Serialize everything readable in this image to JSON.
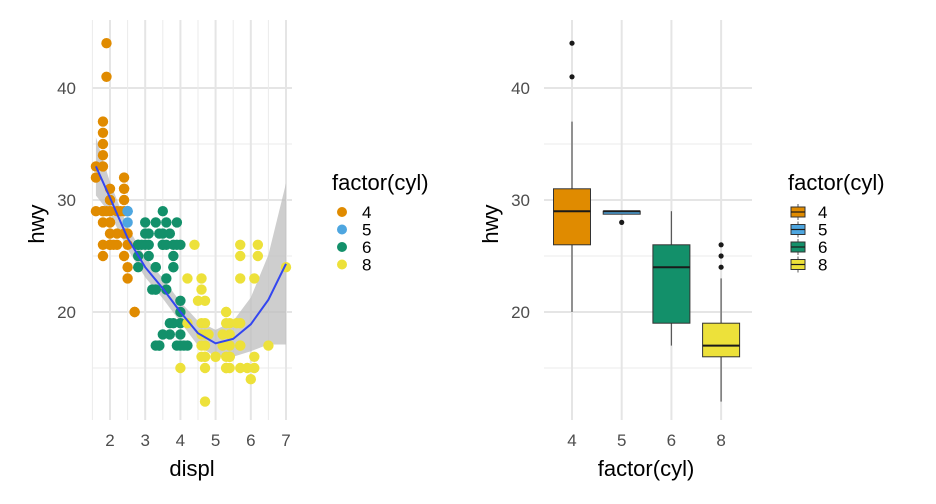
{
  "chart_data": [
    {
      "type": "scatter",
      "title": "",
      "xlabel": "displ",
      "ylabel": "hwy",
      "xlim": [
        1.6,
        7.0
      ],
      "ylim": [
        12,
        44
      ],
      "x_ticks": [
        "2",
        "3",
        "4",
        "5",
        "6",
        "7"
      ],
      "y_ticks": [
        "20",
        "30",
        "40"
      ],
      "grid": true,
      "legend": {
        "title": "factor(cyl)",
        "position": "right",
        "entries": [
          "4",
          "5",
          "6",
          "8"
        ]
      },
      "colors": {
        "4": "#E08B00",
        "5": "#4EA6E0",
        "6": "#13906A",
        "8": "#EDE13A"
      },
      "smooth": {
        "color": "#3346F0",
        "band_color": "#BEBEBE",
        "x": [
          1.6,
          2.0,
          2.5,
          3.0,
          3.5,
          4.0,
          4.5,
          5.0,
          5.5,
          6.0,
          6.5,
          7.0
        ],
        "y": [
          33,
          30.2,
          26.6,
          24.0,
          22.1,
          20.0,
          18.1,
          17.2,
          17.6,
          18.9,
          21.1,
          24.3
        ],
        "se": [
          1.3,
          0.7,
          0.5,
          0.45,
          0.45,
          0.45,
          0.55,
          0.6,
          0.8,
          1.2,
          2.0,
          3.6
        ]
      },
      "series": [
        {
          "name": "4",
          "points": [
            [
              1.8,
              29
            ],
            [
              1.8,
              29
            ],
            [
              2.0,
              31
            ],
            [
              2.0,
              30
            ],
            [
              1.8,
              26
            ],
            [
              1.8,
              25
            ],
            [
              2.0,
              28
            ],
            [
              2.0,
              29
            ],
            [
              2.0,
              26
            ],
            [
              2.4,
              27
            ],
            [
              2.4,
              30
            ],
            [
              2.5,
              26
            ],
            [
              2.5,
              23
            ],
            [
              2.2,
              26
            ],
            [
              2.2,
              29
            ],
            [
              2.4,
              31
            ],
            [
              2.4,
              31
            ],
            [
              1.8,
              33
            ],
            [
              1.6,
              33
            ],
            [
              1.6,
              32
            ],
            [
              1.6,
              29
            ],
            [
              1.9,
              44
            ],
            [
              1.9,
              41
            ],
            [
              1.8,
              37
            ],
            [
              1.8,
              36
            ],
            [
              1.8,
              35
            ],
            [
              1.8,
              34
            ],
            [
              2.0,
              26
            ],
            [
              2.4,
              29
            ],
            [
              2.5,
              24
            ],
            [
              2.7,
              20
            ],
            [
              2.7,
              20
            ],
            [
              2.5,
              27
            ],
            [
              2.0,
              28
            ],
            [
              2.2,
              27
            ],
            [
              2.4,
              25
            ],
            [
              2.4,
              32
            ],
            [
              1.9,
              29
            ],
            [
              2.0,
              27
            ],
            [
              2.1,
              26
            ],
            [
              2.3,
              29
            ],
            [
              2.0,
              30
            ],
            [
              1.8,
              28
            ]
          ]
        },
        {
          "name": "5",
          "points": [
            [
              2.5,
              29
            ],
            [
              2.5,
              29
            ],
            [
              2.5,
              28
            ],
            [
              2.5,
              29
            ]
          ]
        },
        {
          "name": "6",
          "points": [
            [
              2.8,
              26
            ],
            [
              2.8,
              26
            ],
            [
              3.1,
              27
            ],
            [
              2.8,
              25
            ],
            [
              3.1,
              25
            ],
            [
              2.8,
              24
            ],
            [
              3.0,
              26
            ],
            [
              3.3,
              24
            ],
            [
              3.3,
              24
            ],
            [
              3.3,
              22
            ],
            [
              3.3,
              22
            ],
            [
              3.8,
              24
            ],
            [
              3.8,
              24
            ],
            [
              4.0,
              26
            ],
            [
              3.5,
              26
            ],
            [
              3.5,
              26
            ],
            [
              3.1,
              26
            ],
            [
              3.8,
              26
            ],
            [
              3.5,
              29
            ],
            [
              3.6,
              28
            ],
            [
              3.3,
              28
            ],
            [
              3.5,
              27
            ],
            [
              3.0,
              28
            ],
            [
              3.4,
              27
            ],
            [
              3.9,
              26
            ],
            [
              3.6,
              23
            ],
            [
              4.0,
              20
            ],
            [
              4.0,
              19
            ],
            [
              4.0,
              17
            ],
            [
              3.7,
              19
            ],
            [
              3.7,
              18
            ],
            [
              3.4,
              17
            ],
            [
              3.4,
              17
            ],
            [
              3.9,
              17
            ],
            [
              4.2,
              17
            ],
            [
              4.0,
              18
            ],
            [
              3.8,
              19
            ],
            [
              3.6,
              26
            ],
            [
              3.2,
              22
            ],
            [
              3.7,
              27
            ],
            [
              3.9,
              28
            ],
            [
              2.9,
              26
            ],
            [
              3.0,
              27
            ],
            [
              3.6,
              22
            ],
            [
              3.8,
              25
            ],
            [
              3.3,
              17
            ],
            [
              3.5,
              18
            ],
            [
              4.0,
              21
            ],
            [
              4.1,
              17
            ]
          ]
        },
        {
          "name": "8",
          "points": [
            [
              4.2,
              23
            ],
            [
              4.6,
              19
            ],
            [
              4.6,
              18
            ],
            [
              4.7,
              16
            ],
            [
              4.7,
              15
            ],
            [
              4.7,
              12
            ],
            [
              5.2,
              17
            ],
            [
              5.7,
              17
            ],
            [
              6.1,
              16
            ],
            [
              5.3,
              15
            ],
            [
              5.3,
              15
            ],
            [
              5.7,
              17
            ],
            [
              6.5,
              17
            ],
            [
              5.3,
              20
            ],
            [
              5.3,
              20
            ],
            [
              5.7,
              19
            ],
            [
              6.0,
              14
            ],
            [
              6.2,
              26
            ],
            [
              6.2,
              25
            ],
            [
              7.0,
              24
            ],
            [
              5.4,
              16
            ],
            [
              5.4,
              16
            ],
            [
              5.4,
              16
            ],
            [
              4.7,
              19
            ],
            [
              4.7,
              18
            ],
            [
              4.7,
              17
            ],
            [
              5.7,
              15
            ],
            [
              4.6,
              17
            ],
            [
              5.4,
              17
            ],
            [
              5.4,
              15
            ],
            [
              4.0,
              15
            ],
            [
              4.6,
              23
            ],
            [
              4.6,
              22
            ],
            [
              5.4,
              18
            ],
            [
              4.7,
              21
            ],
            [
              5.6,
              19
            ],
            [
              5.0,
              16
            ],
            [
              5.9,
              15
            ],
            [
              4.7,
              16
            ],
            [
              5.7,
              23
            ],
            [
              5.3,
              16
            ],
            [
              6.1,
              23
            ],
            [
              4.4,
              26
            ],
            [
              5.7,
              25
            ],
            [
              4.6,
              16
            ],
            [
              5.4,
              19
            ],
            [
              5.3,
              19
            ],
            [
              4.5,
              21
            ],
            [
              4.2,
              19
            ],
            [
              4.8,
              18
            ],
            [
              5.2,
              18
            ],
            [
              5.0,
              16
            ],
            [
              6.1,
              15
            ],
            [
              5.7,
              26
            ]
          ]
        }
      ]
    },
    {
      "type": "box",
      "title": "",
      "xlabel": "factor(cyl)",
      "ylabel": "hwy",
      "ylim": [
        12,
        44
      ],
      "categories": [
        "4",
        "5",
        "6",
        "8"
      ],
      "y_ticks": [
        "20",
        "30",
        "40"
      ],
      "grid": true,
      "legend": {
        "title": "factor(cyl)",
        "position": "right",
        "entries": [
          "4",
          "5",
          "6",
          "8"
        ]
      },
      "colors": {
        "4": "#E08B00",
        "5": "#4EA6E0",
        "6": "#13906A",
        "8": "#EDE13A"
      },
      "boxes": [
        {
          "name": "4",
          "whisker_low": 20,
          "q1": 26,
          "median": 29,
          "q3": 31,
          "whisker_high": 37,
          "outliers": [
            41,
            44
          ]
        },
        {
          "name": "5",
          "whisker_low": 28.75,
          "q1": 28.75,
          "median": 29,
          "q3": 29,
          "whisker_high": 29,
          "outliers": [
            28
          ]
        },
        {
          "name": "6",
          "whisker_low": 17,
          "q1": 19,
          "median": 24,
          "q3": 26,
          "whisker_high": 29,
          "outliers": []
        },
        {
          "name": "8",
          "whisker_low": 12,
          "q1": 16,
          "median": 17,
          "q3": 19,
          "whisker_high": 23,
          "outliers": [
            24,
            25,
            26
          ]
        }
      ]
    }
  ]
}
